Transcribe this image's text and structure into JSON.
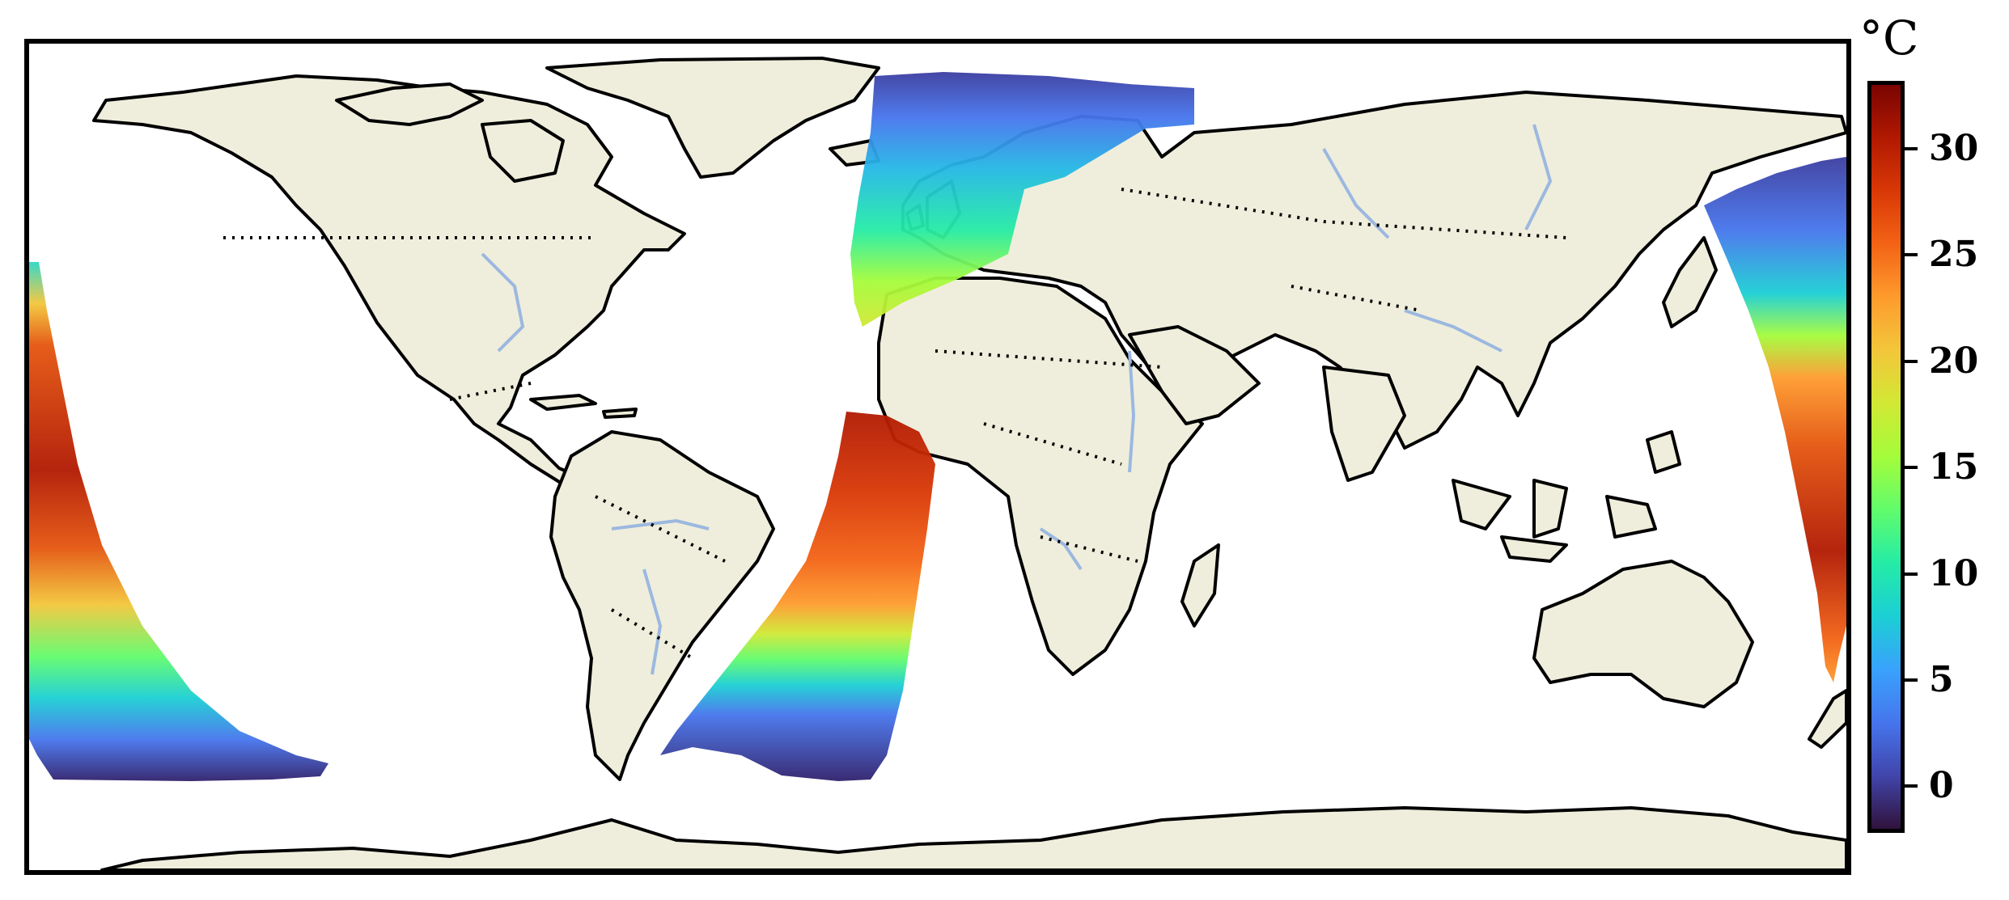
{
  "map": {
    "projection": "PlateCarree",
    "land_color": "#efeedc",
    "ocean_color": "#ffffff",
    "coastline_color": "#000000",
    "border_style": "dotted",
    "river_color": "#9cb8e0"
  },
  "colorbar": {
    "unit": "°C",
    "colormap": "turbo",
    "min": -2,
    "max": 33,
    "ticks": [
      "30",
      "25",
      "20",
      "15",
      "10",
      "5",
      "0"
    ],
    "tick_values": [
      30,
      25,
      20,
      15,
      10,
      5,
      0
    ],
    "colors": [
      "#30123b",
      "#4145ab",
      "#4675ed",
      "#39a2fc",
      "#1bcfd4",
      "#24eca6",
      "#61fc6c",
      "#a4fc3b",
      "#d1e834",
      "#f3c63a",
      "#fe9b2d",
      "#f36315",
      "#d93806",
      "#b11901",
      "#7a0402"
    ]
  },
  "swaths": [
    {
      "name": "pacific-east-track",
      "region": "Eastern Pacific Ocean"
    },
    {
      "name": "atlantic-track",
      "region": "Atlantic Ocean"
    },
    {
      "name": "pacific-west-track",
      "region": "Western Pacific Ocean"
    }
  ]
}
